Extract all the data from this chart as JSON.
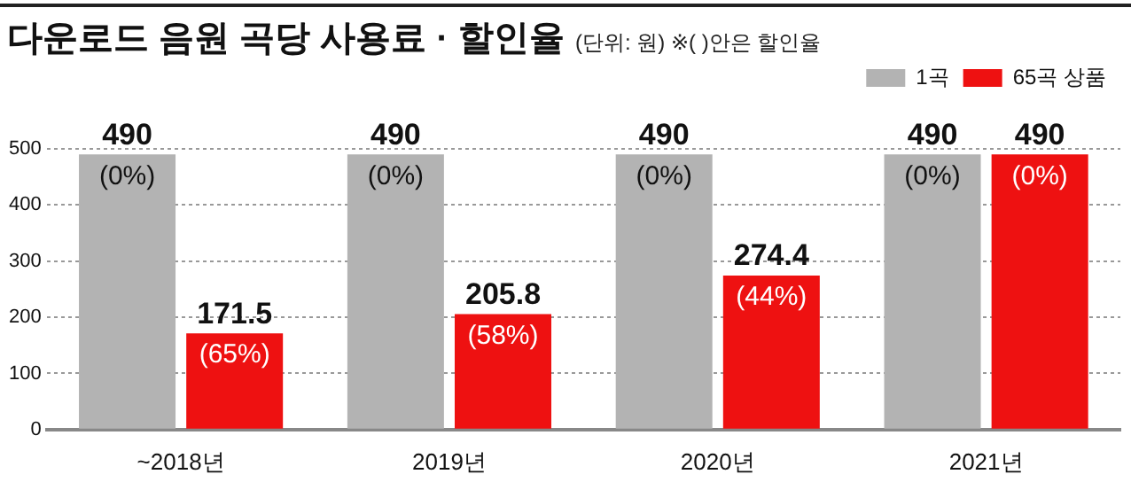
{
  "chart_data": {
    "type": "bar",
    "title": "다운로드 음원 곡당 사용료 · 할인율",
    "subtitle": "(단위: 원) ※( )안은 할인율",
    "categories": [
      "~2018년",
      "2019년",
      "2020년",
      "2021년"
    ],
    "series": [
      {
        "name": "1곡",
        "color": "#b3b3b3",
        "values": [
          490,
          490,
          490,
          490
        ],
        "value_labels": [
          "490 (0%)",
          "490 (0%)",
          "490 (0%)",
          "490 (0%)"
        ]
      },
      {
        "name": "65곡 상품",
        "color": "#ee1111",
        "values": [
          171.5,
          205.8,
          274.4,
          490
        ],
        "value_labels": [
          "171.5 (65%)",
          "205.8 (58%)",
          "274.4 (44%)",
          "490 (0%)"
        ]
      }
    ],
    "ylim": [
      0,
      500
    ],
    "yticks": [
      0,
      100,
      200,
      300,
      400,
      500
    ],
    "grid": "y",
    "legend": "top right"
  }
}
